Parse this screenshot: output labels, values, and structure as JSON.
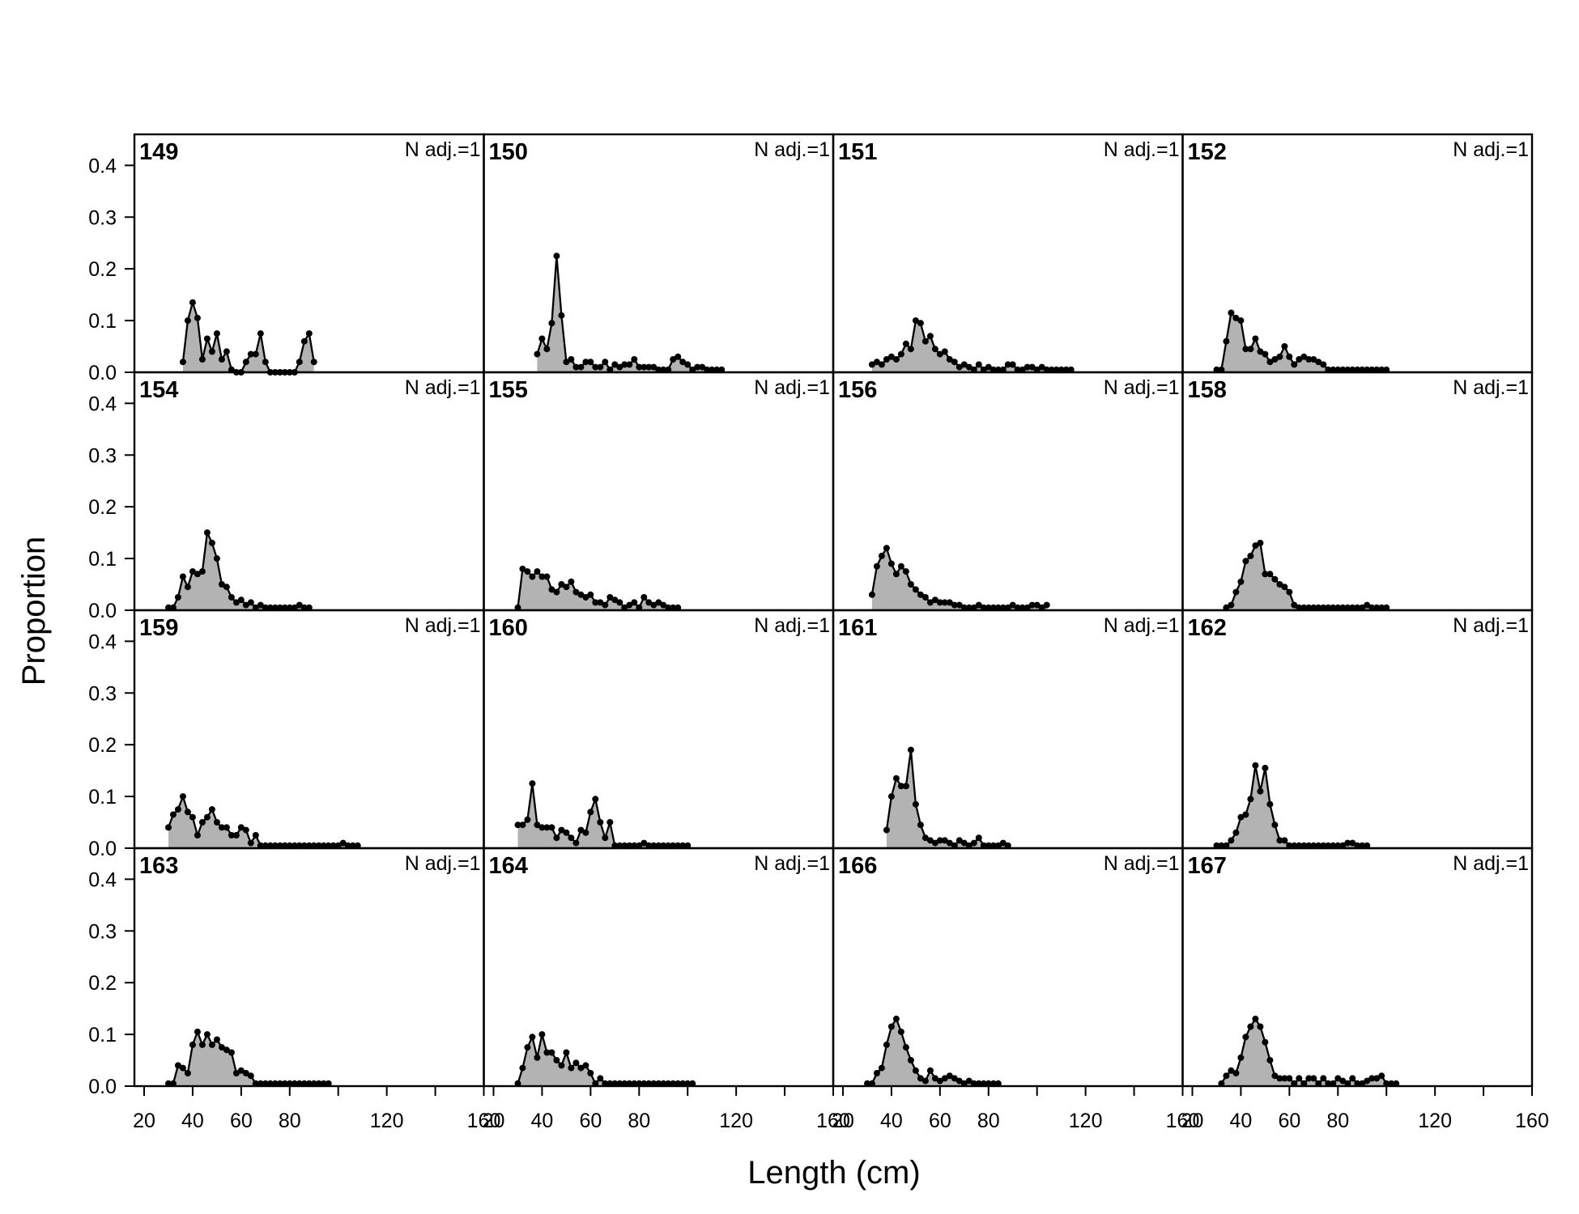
{
  "chart_data": {
    "type": "area",
    "xlabel": "Length (cm)",
    "ylabel": "Proportion",
    "xlim": [
      16,
      160
    ],
    "ylim": [
      0,
      0.46
    ],
    "x_ticks_labeled": [
      20,
      40,
      60,
      80,
      120,
      160
    ],
    "y_ticks": [
      "0.0",
      "0.1",
      "0.2",
      "0.3",
      "0.4"
    ],
    "grid": false,
    "fill_color": "#b3b3b3",
    "line_color": "#000000",
    "panels": [
      {
        "id": "149",
        "note": "N adj.=1",
        "x": [
          36,
          38,
          40,
          42,
          44,
          46,
          48,
          50,
          52,
          54,
          56,
          58,
          60,
          62,
          64,
          66,
          68,
          70,
          72,
          74,
          76,
          78,
          80,
          82,
          84,
          86,
          88,
          90
        ],
        "y": [
          0.02,
          0.1,
          0.135,
          0.105,
          0.025,
          0.065,
          0.04,
          0.075,
          0.025,
          0.04,
          0.005,
          0,
          0.0,
          0.02,
          0.035,
          0.035,
          0.075,
          0.02,
          0,
          0,
          0,
          0,
          0,
          0,
          0.02,
          0.06,
          0.075,
          0.02
        ]
      },
      {
        "id": "154",
        "note": "N adj.=1",
        "x": [
          30,
          32,
          34,
          36,
          38,
          40,
          42,
          44,
          46,
          48,
          50,
          52,
          54,
          56,
          58,
          60,
          62,
          64,
          66,
          68,
          70,
          72,
          74,
          76,
          78,
          80,
          82,
          84,
          86,
          88
        ],
        "y": [
          0.005,
          0.005,
          0.025,
          0.065,
          0.045,
          0.075,
          0.07,
          0.075,
          0.15,
          0.13,
          0.1,
          0.05,
          0.045,
          0.025,
          0.015,
          0.02,
          0.01,
          0.015,
          0.005,
          0.01,
          0.005,
          0.005,
          0.005,
          0.005,
          0.005,
          0.005,
          0.005,
          0.01,
          0.005,
          0.005
        ]
      },
      {
        "id": "159",
        "note": "N adj.=1",
        "x": [
          30,
          32,
          34,
          36,
          38,
          40,
          42,
          44,
          46,
          48,
          50,
          52,
          54,
          56,
          58,
          60,
          62,
          64,
          66,
          68,
          70,
          72,
          74,
          76,
          78,
          80,
          82,
          84,
          86,
          88,
          90,
          92,
          94,
          96,
          98,
          100,
          102,
          104,
          106,
          108
        ],
        "y": [
          0.04,
          0.065,
          0.075,
          0.1,
          0.07,
          0.06,
          0.025,
          0.05,
          0.06,
          0.075,
          0.05,
          0.04,
          0.04,
          0.025,
          0.025,
          0.04,
          0.035,
          0.01,
          0.025,
          0.005,
          0.005,
          0.005,
          0.005,
          0.005,
          0.005,
          0.005,
          0.005,
          0.005,
          0.005,
          0.005,
          0.005,
          0.005,
          0.005,
          0.005,
          0.005,
          0.005,
          0.01,
          0.005,
          0.005,
          0.005
        ]
      },
      {
        "id": "163",
        "note": "N adj.=1",
        "x": [
          30,
          32,
          34,
          36,
          38,
          40,
          42,
          44,
          46,
          48,
          50,
          52,
          54,
          56,
          58,
          60,
          62,
          64,
          66,
          68,
          70,
          72,
          74,
          76,
          78,
          80,
          82,
          84,
          86,
          88,
          90,
          92,
          94,
          96
        ],
        "y": [
          0.005,
          0.005,
          0.04,
          0.035,
          0.025,
          0.08,
          0.105,
          0.08,
          0.1,
          0.08,
          0.09,
          0.075,
          0.07,
          0.065,
          0.025,
          0.03,
          0.025,
          0.02,
          0.005,
          0.005,
          0.005,
          0.005,
          0.005,
          0.005,
          0.005,
          0.005,
          0.005,
          0.005,
          0.005,
          0.005,
          0.005,
          0.005,
          0.005,
          0.005
        ]
      },
      {
        "id": "150",
        "note": "N adj.=1",
        "x": [
          38,
          40,
          42,
          44,
          46,
          48,
          50,
          52,
          54,
          56,
          58,
          60,
          62,
          64,
          66,
          68,
          70,
          72,
          74,
          76,
          78,
          80,
          82,
          84,
          86,
          88,
          90,
          92,
          94,
          96,
          98,
          100,
          102,
          104,
          106,
          108,
          110,
          112,
          114
        ],
        "y": [
          0.035,
          0.065,
          0.045,
          0.095,
          0.225,
          0.11,
          0.02,
          0.025,
          0.01,
          0.01,
          0.02,
          0.02,
          0.01,
          0.01,
          0.02,
          0.005,
          0.015,
          0.01,
          0.015,
          0.015,
          0.025,
          0.01,
          0.01,
          0.01,
          0.01,
          0.005,
          0.005,
          0.005,
          0.025,
          0.03,
          0.02,
          0.015,
          0.005,
          0.01,
          0.01,
          0.005,
          0.005,
          0.005,
          0.005
        ]
      },
      {
        "id": "155",
        "note": "N adj.=1",
        "x": [
          30,
          32,
          34,
          36,
          38,
          40,
          42,
          44,
          46,
          48,
          50,
          52,
          54,
          56,
          58,
          60,
          62,
          64,
          66,
          68,
          70,
          72,
          74,
          76,
          78,
          80,
          82,
          84,
          86,
          88,
          90,
          92,
          94,
          96
        ],
        "y": [
          0.005,
          0.08,
          0.075,
          0.065,
          0.075,
          0.065,
          0.065,
          0.04,
          0.035,
          0.05,
          0.045,
          0.055,
          0.035,
          0.03,
          0.025,
          0.03,
          0.015,
          0.015,
          0.01,
          0.025,
          0.02,
          0.015,
          0.005,
          0.01,
          0.015,
          0.005,
          0.025,
          0.015,
          0.01,
          0.015,
          0.01,
          0.005,
          0.005,
          0.005
        ]
      },
      {
        "id": "160",
        "note": "N adj.=1",
        "x": [
          30,
          32,
          34,
          36,
          38,
          40,
          42,
          44,
          46,
          48,
          50,
          52,
          54,
          56,
          58,
          60,
          62,
          64,
          66,
          68,
          70,
          72,
          74,
          76,
          78,
          80,
          82,
          84,
          86,
          88,
          90,
          92,
          94,
          96,
          98,
          100
        ],
        "y": [
          0.045,
          0.045,
          0.055,
          0.125,
          0.045,
          0.04,
          0.04,
          0.04,
          0.02,
          0.035,
          0.03,
          0.02,
          0.01,
          0.035,
          0.03,
          0.07,
          0.095,
          0.05,
          0.02,
          0.05,
          0.005,
          0.005,
          0.005,
          0.005,
          0.005,
          0.005,
          0.01,
          0.005,
          0.005,
          0.005,
          0.005,
          0.005,
          0.005,
          0.005,
          0.005,
          0.005
        ]
      },
      {
        "id": "164",
        "note": "N adj.=1",
        "x": [
          30,
          32,
          34,
          36,
          38,
          40,
          42,
          44,
          46,
          48,
          50,
          52,
          54,
          56,
          58,
          60,
          62,
          64,
          66,
          68,
          70,
          72,
          74,
          76,
          78,
          80,
          82,
          84,
          86,
          88,
          90,
          92,
          94,
          96,
          98,
          100,
          102
        ],
        "y": [
          0.005,
          0.035,
          0.075,
          0.095,
          0.055,
          0.1,
          0.065,
          0.065,
          0.05,
          0.04,
          0.065,
          0.035,
          0.045,
          0.035,
          0.04,
          0.025,
          0.005,
          0.015,
          0.005,
          0.005,
          0.005,
          0.005,
          0.005,
          0.005,
          0.005,
          0.005,
          0.005,
          0.005,
          0.005,
          0.005,
          0.005,
          0.005,
          0.005,
          0.005,
          0.005,
          0.005,
          0.005
        ]
      },
      {
        "id": "151",
        "note": "N adj.=1",
        "x": [
          32,
          34,
          36,
          38,
          40,
          42,
          44,
          46,
          48,
          50,
          52,
          54,
          56,
          58,
          60,
          62,
          64,
          66,
          68,
          70,
          72,
          74,
          76,
          78,
          80,
          82,
          84,
          86,
          88,
          90,
          92,
          94,
          96,
          98,
          100,
          102,
          104,
          106,
          108,
          110,
          112,
          114
        ],
        "y": [
          0.015,
          0.02,
          0.015,
          0.025,
          0.03,
          0.025,
          0.035,
          0.055,
          0.045,
          0.1,
          0.095,
          0.06,
          0.07,
          0.045,
          0.035,
          0.04,
          0.025,
          0.02,
          0.01,
          0.015,
          0.01,
          0.005,
          0.015,
          0.005,
          0.01,
          0.005,
          0.005,
          0.005,
          0.015,
          0.015,
          0.005,
          0.005,
          0.01,
          0.01,
          0.005,
          0.01,
          0.005,
          0.005,
          0.005,
          0.005,
          0.005,
          0.005
        ]
      },
      {
        "id": "156",
        "note": "N adj.=1",
        "x": [
          32,
          34,
          36,
          38,
          40,
          42,
          44,
          46,
          48,
          50,
          52,
          54,
          56,
          58,
          60,
          62,
          64,
          66,
          68,
          70,
          72,
          74,
          76,
          78,
          80,
          82,
          84,
          86,
          88,
          90,
          92,
          94,
          96,
          98,
          100,
          102,
          104
        ],
        "y": [
          0.03,
          0.085,
          0.105,
          0.12,
          0.09,
          0.07,
          0.085,
          0.075,
          0.05,
          0.04,
          0.03,
          0.025,
          0.015,
          0.02,
          0.015,
          0.015,
          0.015,
          0.01,
          0.01,
          0.005,
          0.005,
          0.005,
          0.01,
          0.005,
          0.005,
          0.005,
          0.005,
          0.005,
          0.005,
          0.01,
          0.005,
          0.005,
          0.005,
          0.01,
          0.01,
          0.005,
          0.01
        ]
      },
      {
        "id": "161",
        "note": "N adj.=1",
        "x": [
          38,
          40,
          42,
          44,
          46,
          48,
          50,
          52,
          54,
          56,
          58,
          60,
          62,
          64,
          66,
          68,
          70,
          72,
          74,
          76,
          78,
          80,
          82,
          84,
          86,
          88
        ],
        "y": [
          0.035,
          0.1,
          0.135,
          0.12,
          0.12,
          0.19,
          0.085,
          0.045,
          0.02,
          0.015,
          0.01,
          0.015,
          0.015,
          0.01,
          0.005,
          0.015,
          0.01,
          0.005,
          0.01,
          0.02,
          0.005,
          0.005,
          0.005,
          0.005,
          0.01,
          0.005
        ]
      },
      {
        "id": "166",
        "note": "N adj.=1",
        "x": [
          30,
          32,
          34,
          36,
          38,
          40,
          42,
          44,
          46,
          48,
          50,
          52,
          54,
          56,
          58,
          60,
          62,
          64,
          66,
          68,
          70,
          72,
          74,
          76,
          78,
          80,
          82,
          84
        ],
        "y": [
          0.005,
          0.005,
          0.025,
          0.035,
          0.08,
          0.115,
          0.13,
          0.105,
          0.075,
          0.05,
          0.03,
          0.015,
          0.01,
          0.03,
          0.015,
          0.01,
          0.015,
          0.02,
          0.015,
          0.01,
          0.005,
          0.01,
          0.005,
          0.005,
          0.005,
          0.005,
          0.005,
          0.005
        ]
      },
      {
        "id": "152",
        "note": "N adj.=1",
        "x": [
          30,
          32,
          34,
          36,
          38,
          40,
          42,
          44,
          46,
          48,
          50,
          52,
          54,
          56,
          58,
          60,
          62,
          64,
          66,
          68,
          70,
          72,
          74,
          76,
          78,
          80,
          82,
          84,
          86,
          88,
          90,
          92,
          94,
          96,
          98,
          100
        ],
        "y": [
          0.005,
          0.005,
          0.06,
          0.115,
          0.105,
          0.1,
          0.045,
          0.045,
          0.065,
          0.04,
          0.035,
          0.02,
          0.025,
          0.03,
          0.05,
          0.03,
          0.015,
          0.025,
          0.03,
          0.025,
          0.025,
          0.02,
          0.015,
          0.005,
          0.005,
          0.005,
          0.005,
          0.005,
          0.005,
          0.005,
          0.005,
          0.005,
          0.005,
          0.005,
          0.005,
          0.005
        ]
      },
      {
        "id": "158",
        "note": "N adj.=1",
        "x": [
          34,
          36,
          38,
          40,
          42,
          44,
          46,
          48,
          50,
          52,
          54,
          56,
          58,
          60,
          62,
          64,
          66,
          68,
          70,
          72,
          74,
          76,
          78,
          80,
          82,
          84,
          86,
          88,
          90,
          92,
          94,
          96,
          98,
          100
        ],
        "y": [
          0.005,
          0.01,
          0.035,
          0.055,
          0.095,
          0.105,
          0.125,
          0.13,
          0.07,
          0.07,
          0.06,
          0.05,
          0.045,
          0.035,
          0.01,
          0.005,
          0.005,
          0.005,
          0.005,
          0.005,
          0.005,
          0.005,
          0.005,
          0.005,
          0.005,
          0.005,
          0.005,
          0.005,
          0.005,
          0.01,
          0.005,
          0.005,
          0.005,
          0.005
        ]
      },
      {
        "id": "162",
        "note": "N adj.=1",
        "x": [
          30,
          32,
          34,
          36,
          38,
          40,
          42,
          44,
          46,
          48,
          50,
          52,
          54,
          56,
          58,
          60,
          62,
          64,
          66,
          68,
          70,
          72,
          74,
          76,
          78,
          80,
          82,
          84,
          86,
          88,
          90,
          92
        ],
        "y": [
          0.005,
          0.005,
          0.005,
          0.015,
          0.03,
          0.06,
          0.065,
          0.095,
          0.16,
          0.11,
          0.155,
          0.085,
          0.045,
          0.015,
          0.015,
          0.005,
          0.005,
          0.005,
          0.005,
          0.005,
          0.005,
          0.005,
          0.005,
          0.005,
          0.005,
          0.005,
          0.005,
          0.01,
          0.01,
          0.005,
          0.005,
          0.005
        ]
      },
      {
        "id": "167",
        "note": "N adj.=1",
        "x": [
          32,
          34,
          36,
          38,
          40,
          42,
          44,
          46,
          48,
          50,
          52,
          54,
          56,
          58,
          60,
          62,
          64,
          66,
          68,
          70,
          72,
          74,
          76,
          78,
          80,
          82,
          84,
          86,
          88,
          90,
          92,
          94,
          96,
          98,
          100,
          102,
          104
        ],
        "y": [
          0.005,
          0.02,
          0.03,
          0.025,
          0.055,
          0.095,
          0.115,
          0.13,
          0.115,
          0.085,
          0.05,
          0.02,
          0.015,
          0.015,
          0.015,
          0.005,
          0.015,
          0.005,
          0.015,
          0.015,
          0.005,
          0.015,
          0.005,
          0.005,
          0.015,
          0.01,
          0.005,
          0.015,
          0.005,
          0.005,
          0.01,
          0.015,
          0.015,
          0.02,
          0.005,
          0.005,
          0.005
        ]
      }
    ]
  }
}
